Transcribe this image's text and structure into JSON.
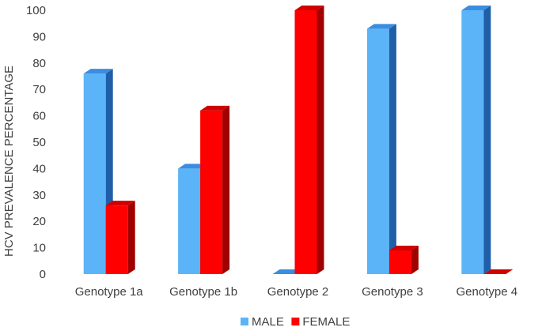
{
  "chart_data": {
    "type": "bar",
    "style": "3d-clustered-column",
    "title": "",
    "xlabel": "",
    "ylabel": "HCV PREVALENCE PERCENTAGE",
    "ylim": [
      0,
      100
    ],
    "yticks": [
      0,
      10,
      20,
      30,
      40,
      50,
      60,
      70,
      80,
      90,
      100
    ],
    "grid": false,
    "categories": [
      "Genotype 1a",
      "Genotype 1b",
      "Genotype 2",
      "Genotype 3",
      "Genotype 4"
    ],
    "series": [
      {
        "name": "MALE",
        "values": [
          76,
          40,
          0,
          93,
          100
        ],
        "color": "#5BB4F8",
        "side_color": "#1F5FA8",
        "top_color": "#3A8DE0"
      },
      {
        "name": "FEMALE",
        "values": [
          26,
          62,
          100,
          9,
          0
        ],
        "color": "#FF0000",
        "side_color": "#A00000",
        "top_color": "#D00000"
      }
    ],
    "legend": {
      "position": "bottom"
    }
  }
}
